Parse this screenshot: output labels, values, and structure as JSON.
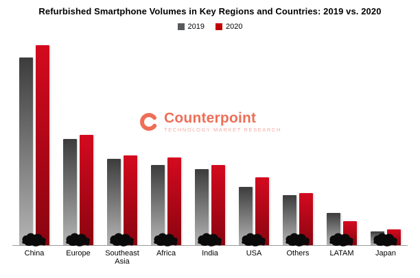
{
  "title": "Refurbished Smartphone Volumes in Key Regions and Countries: 2019 vs. 2020",
  "legend": {
    "items": [
      {
        "label": "2019",
        "color": "#58595b"
      },
      {
        "label": "2020",
        "color": "#c00000"
      }
    ]
  },
  "watermark": {
    "name": "Counterpoint",
    "tagline": "Technology Market Research",
    "accent_color": "#ea4b2e",
    "tagline_color": "#f2958a"
  },
  "chart_data": {
    "type": "bar",
    "title": "Refurbished Smartphone Volumes in Key Regions and Countries: 2019 vs. 2020",
    "categories": [
      "China",
      "Europe",
      "Southeast Asia",
      "Africa",
      "India",
      "USA",
      "Others",
      "LATAM",
      "Japan"
    ],
    "series": [
      {
        "name": "2019",
        "color": "#58595b",
        "gradient_top": "#3c3c3c",
        "gradient_bottom": "#b5b5b5",
        "values": [
          94,
          53,
          43,
          40,
          38,
          29,
          25,
          16,
          7
        ]
      },
      {
        "name": "2020",
        "color": "#c00000",
        "gradient_top": "#d40a1f",
        "gradient_bottom": "#8a0410",
        "values": [
          100,
          55,
          45,
          44,
          40,
          34,
          26,
          12,
          8
        ]
      }
    ],
    "xlabel": "",
    "ylabel": "",
    "ylim": [
      0,
      105
    ],
    "grid": false,
    "legend_position": "top-center",
    "note": "No numeric axis shown in chart; values are relative index estimated from bar heights with China 2020 = 100. Black country/region map silhouettes sit at the base of each bar pair."
  }
}
